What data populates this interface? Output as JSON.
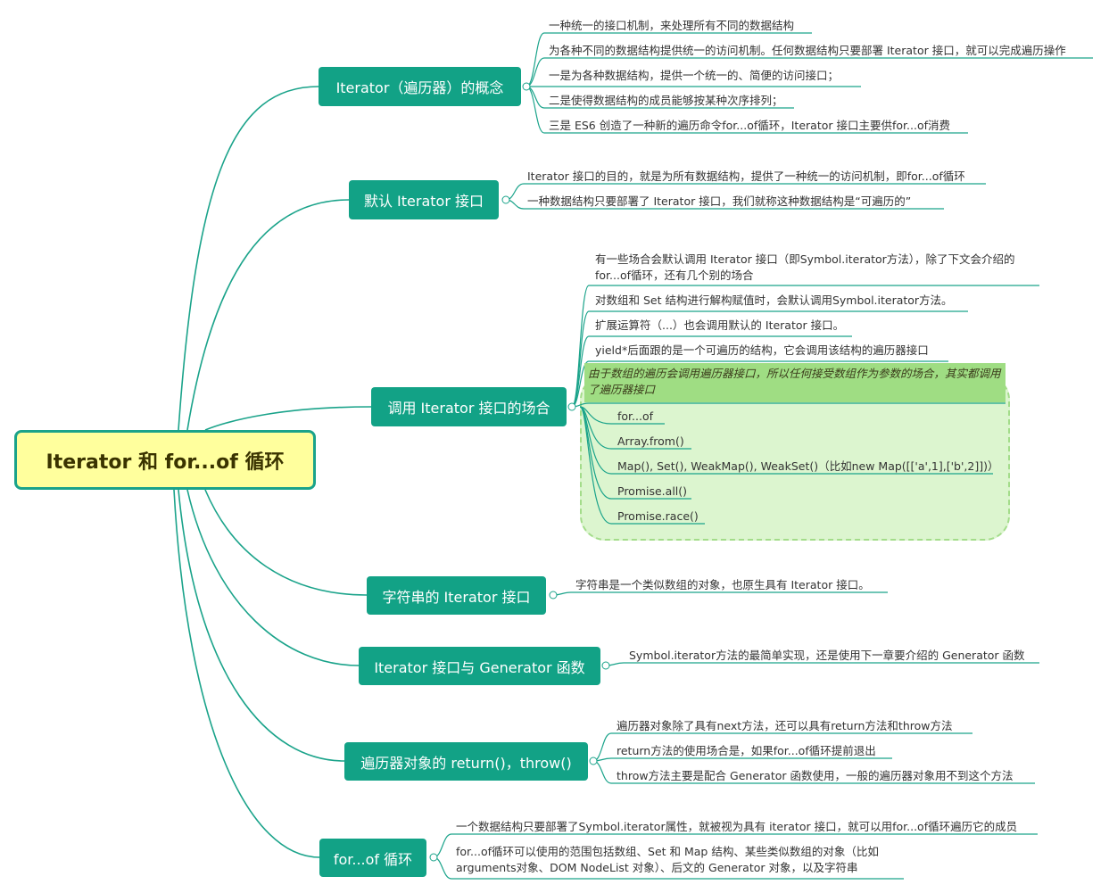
{
  "root": {
    "label": "Iterator 和 for...of 循环"
  },
  "topics": [
    {
      "label": "Iterator（遍历器）的概念",
      "items": [
        "一种统一的接口机制，来处理所有不同的数据结构",
        "为各种不同的数据结构提供统一的访问机制。任何数据结构只要部署 Iterator 接口，就可以完成遍历操作",
        "一是为各种数据结构，提供一个统一的、简便的访问接口；",
        "二是使得数据结构的成员能够按某种次序排列；",
        "三是 ES6 创造了一种新的遍历命令for...of循环，Iterator 接口主要供for...of消费"
      ]
    },
    {
      "label": "默认 Iterator 接口",
      "items": [
        "Iterator 接口的目的，就是为所有数据结构，提供了一种统一的访问机制，即for...of循环",
        "一种数据结构只要部署了 Iterator 接口，我们就称这种数据结构是“可遍历的”"
      ]
    },
    {
      "label": "调用 Iterator 接口的场合",
      "items": [
        "有一些场合会默认调用 Iterator 接口（即Symbol.iterator方法），除了下文会介绍的for...of循环，还有几个别的场合",
        "对数组和 Set 结构进行解构赋值时，会默认调用Symbol.iterator方法。",
        "扩展运算符（...）也会调用默认的 Iterator 接口。",
        "yield*后面跟的是一个可遍历的结构，它会调用该结构的遍历器接口"
      ],
      "highlight": "由于数组的遍历会调用遍历器接口，所以任何接受数组作为参数的场合，其实都调用了遍历器接口",
      "subitems": [
        "for...of",
        "Array.from()",
        "Map(), Set(), WeakMap(), WeakSet()（比如new Map([['a',1],['b',2]])）",
        "Promise.all()",
        "Promise.race()"
      ]
    },
    {
      "label": "字符串的 Iterator 接口",
      "items": [
        "字符串是一个类似数组的对象，也原生具有 Iterator 接口。"
      ]
    },
    {
      "label": "Iterator 接口与 Generator 函数",
      "items": [
        "Symbol.iterator方法的最简单实现，还是使用下一章要介绍的 Generator 函数"
      ]
    },
    {
      "label": "遍历器对象的 return()，throw()",
      "items": [
        "遍历器对象除了具有next方法，还可以具有return方法和throw方法",
        "return方法的使用场合是，如果for...of循环提前退出",
        "throw方法主要是配合 Generator 函数使用，一般的遍历器对象用不到这个方法"
      ]
    },
    {
      "label": "for...of 循环",
      "items": [
        "一个数据结构只要部署了Symbol.iterator属性，就被视为具有 iterator 接口，就可以用for...of循环遍历它的成员",
        "for...of循环可以使用的范围包括数组、Set 和 Map 结构、某些类似数组的对象（比如arguments对象、DOM NodeList 对象）、后文的 Generator 对象，以及字符串"
      ]
    }
  ],
  "colors": {
    "line": "#1aa38a",
    "topic_bg": "#12a286",
    "root_bg": "#ffff9d",
    "highlight_bg": "#9fdd83",
    "cloud_bg": "#dcf5cf"
  }
}
